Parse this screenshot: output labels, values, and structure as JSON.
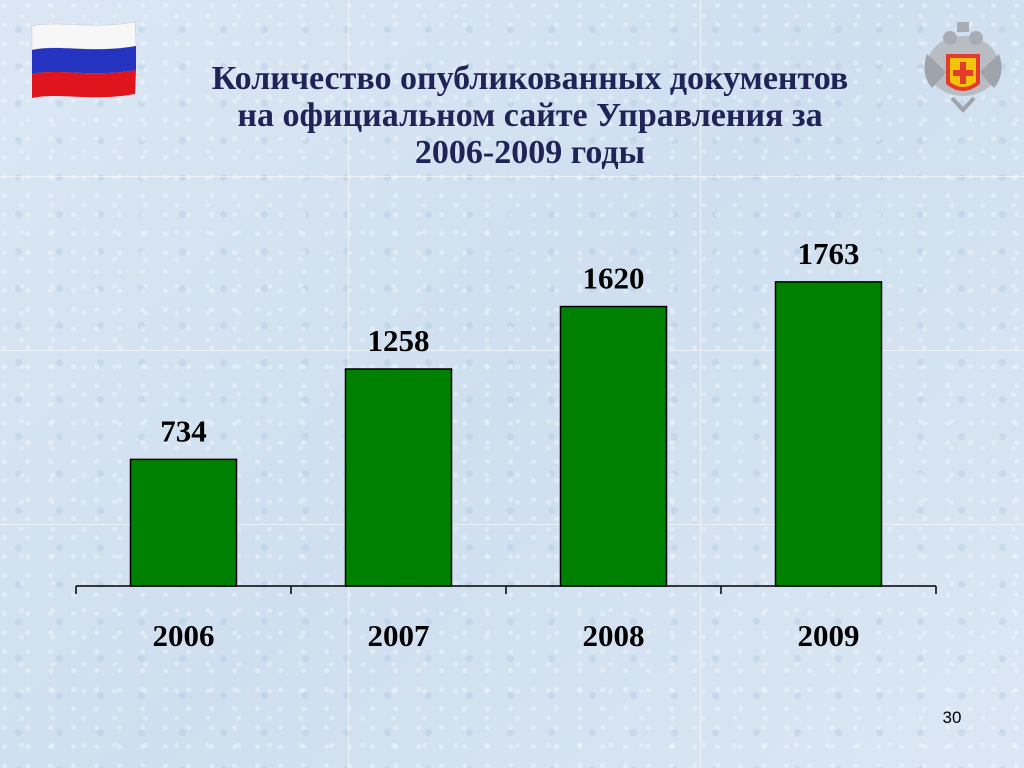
{
  "slide": {
    "title_lines": [
      "Количество опубликованных документов",
      "на официальном сайте Управления за",
      "2006-2009 годы"
    ],
    "page_number": "30"
  },
  "decor": {
    "flag_icon": "russian-flag-icon",
    "emblem_icon": "rospotrebnadzor-emblem-icon"
  },
  "colors": {
    "bar": "#008000",
    "title": "#1f2356"
  },
  "chart_data": {
    "type": "bar",
    "title": "Количество опубликованных документов на официальном сайте Управления за 2006-2009 годы",
    "categories": [
      "2006",
      "2007",
      "2008",
      "2009"
    ],
    "values": [
      734,
      1258,
      1620,
      1763
    ],
    "data_labels": [
      "734",
      "1258",
      "1620",
      "1763"
    ],
    "xlabel": "",
    "ylabel": "",
    "ylim": [
      0,
      2000
    ],
    "grid": false,
    "legend": "none"
  }
}
